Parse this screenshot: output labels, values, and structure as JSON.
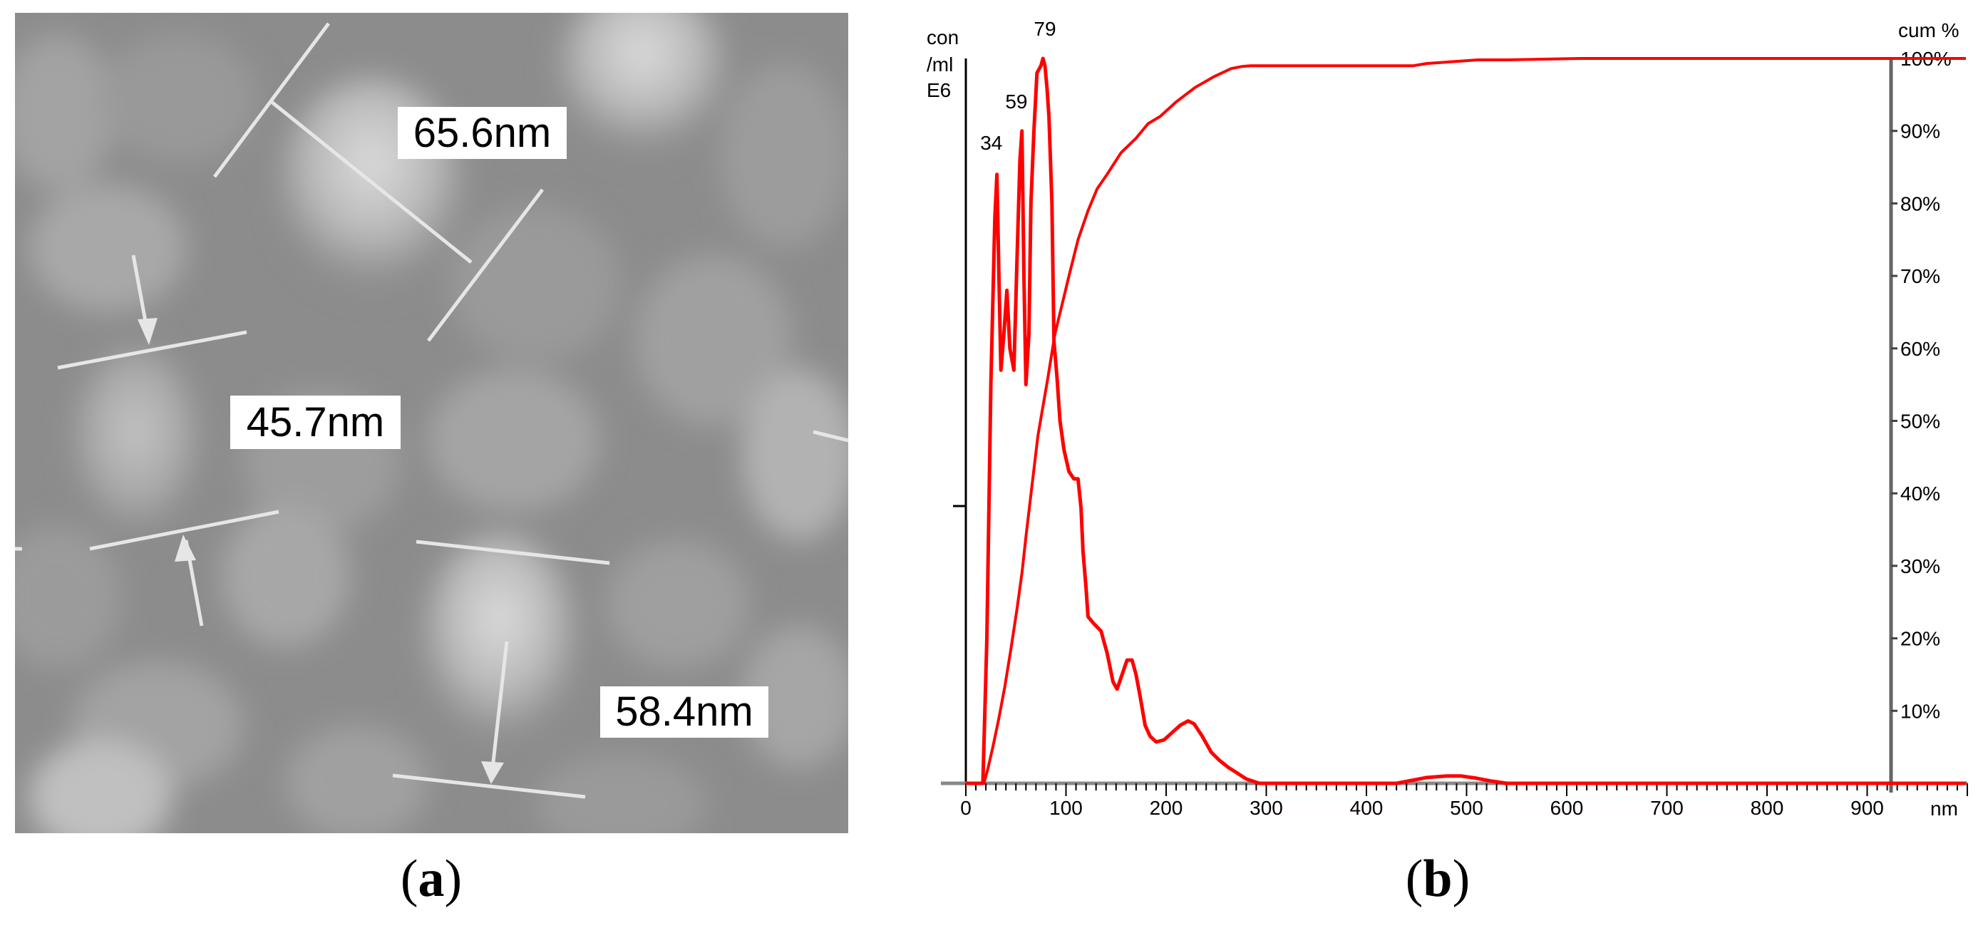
{
  "figure": {
    "panel_a": {
      "caption_letter": "a",
      "description": "SEM micrograph of nanoparticles",
      "measurements": [
        {
          "label": "65.6nm",
          "box": [
            558,
            150,
            237,
            73
          ]
        },
        {
          "label": "45.7nm",
          "box": [
            323,
            555,
            239,
            75
          ]
        },
        {
          "label": "58.4nm",
          "box": [
            842,
            963,
            236,
            72
          ]
        }
      ]
    },
    "panel_b": {
      "caption_letter": "b"
    }
  },
  "chart_data": {
    "type": "line",
    "title": "",
    "xlabel": "nm",
    "ylabel_left": [
      "con",
      "/ml",
      "E6"
    ],
    "ylabel_right": "cum %",
    "xlim": [
      0,
      923
    ],
    "x_ticks": [
      "0",
      "100",
      "200",
      "300",
      "400",
      "500",
      "600",
      "700",
      "800",
      "900"
    ],
    "y_right_ticks": [
      "10%",
      "20%",
      "30%",
      "40%",
      "50%",
      "60%",
      "70%",
      "80%",
      "90%",
      "100%"
    ],
    "ylim_right": [
      0,
      100
    ],
    "grid": false,
    "line_color": "#ff0000",
    "peak_labels": [
      {
        "label": "79",
        "x": 79
      },
      {
        "label": "59",
        "x": 59
      },
      {
        "label": "34",
        "x": 34
      }
    ],
    "series": [
      {
        "name": "concentration (relative, % of max)",
        "axis": "left",
        "x": [
          0,
          17,
          21,
          25,
          29,
          31,
          33,
          35,
          38,
          41,
          44,
          48,
          51,
          54,
          56,
          58,
          60,
          63,
          65,
          68,
          71,
          75,
          77,
          79,
          81,
          83,
          86,
          88,
          91,
          94,
          98,
          103,
          108,
          112,
          115,
          117,
          120,
          122,
          128,
          135,
          141,
          147,
          151,
          156,
          161,
          166,
          170,
          174,
          179,
          184,
          190,
          198,
          206,
          214,
          222,
          228,
          236,
          245,
          253,
          262,
          270,
          280,
          293,
          300,
          430,
          445,
          460,
          480,
          495,
          510,
          525,
          540,
          923
        ],
        "y": [
          0,
          0,
          20,
          55,
          78,
          84,
          70,
          57,
          62,
          68,
          60,
          57,
          72,
          86,
          90,
          70,
          55,
          62,
          80,
          90,
          98,
          99,
          100,
          99,
          96,
          92,
          80,
          61,
          56,
          50,
          46,
          43,
          42,
          42,
          38,
          32,
          27,
          23,
          22,
          21,
          18,
          14,
          13,
          15,
          17,
          17,
          15,
          12,
          8,
          6.5,
          5.7,
          6,
          7,
          8,
          8.6,
          8.2,
          6.5,
          4.3,
          3.2,
          2.2,
          1.5,
          0.6,
          0,
          0,
          0,
          0.4,
          0.8,
          1.0,
          1.0,
          0.7,
          0.3,
          0,
          0
        ]
      },
      {
        "name": "cumulative %",
        "axis": "right",
        "x": [
          0,
          18,
          22,
          27,
          33,
          39,
          45,
          51,
          56,
          60,
          66,
          72,
          77,
          82,
          89,
          96,
          103,
          112,
          122,
          131,
          141,
          155,
          170,
          182,
          194,
          210,
          229,
          248,
          265,
          276,
          284,
          300,
          447,
          460,
          490,
          511,
          540,
          614,
          923
        ],
        "y": [
          0,
          0,
          2,
          5,
          9,
          13.4,
          18.5,
          24,
          29,
          34,
          41,
          48,
          52,
          56,
          62,
          66,
          70,
          75,
          79,
          82,
          84,
          87,
          89,
          91,
          92,
          94,
          96,
          97.5,
          98.6,
          98.9,
          99,
          99,
          99,
          99.3,
          99.6,
          99.8,
          99.8,
          100,
          100
        ]
      }
    ]
  }
}
